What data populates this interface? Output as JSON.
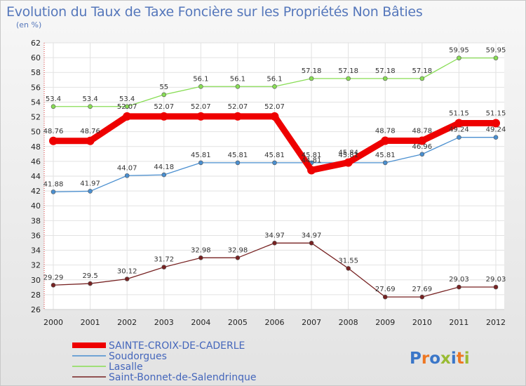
{
  "header": {
    "title": "Evolution du Taux de Taxe Foncière sur les Propriétés Non Bâties",
    "unit": "(en %)"
  },
  "logo": {
    "text": "Proxiti"
  },
  "chart_data": {
    "type": "line",
    "title": "Evolution du Taux de Taxe Foncière sur les Propriétés Non Bâties",
    "ylabel": "(en %)",
    "xlabel": "",
    "x": [
      "2000",
      "2001",
      "2002",
      "2003",
      "2004",
      "2005",
      "2006",
      "2007",
      "2008",
      "2009",
      "2010",
      "2011",
      "2012"
    ],
    "ylim": [
      26,
      62
    ],
    "yticks": [
      26,
      28,
      30,
      32,
      34,
      36,
      38,
      40,
      42,
      44,
      46,
      48,
      50,
      52,
      54,
      56,
      58,
      60,
      62
    ],
    "grid": true,
    "legend_position": "bottom-left",
    "series": [
      {
        "name": "SAINTE-CROIX-DE-CADERLE",
        "color": "#ee0000",
        "values": [
          48.76,
          48.76,
          52.07,
          52.07,
          52.07,
          52.07,
          52.07,
          44.81,
          45.84,
          48.78,
          48.78,
          51.15,
          51.15
        ],
        "labels": [
          "48.76",
          "48.76",
          "52.07",
          "52.07",
          "52.07",
          "52.07",
          "52.07",
          "44.81",
          "45.84",
          "48.78",
          "48.78",
          "51.15",
          "51.15"
        ]
      },
      {
        "name": "Soudorgues",
        "color": "#4a8fd0",
        "values": [
          41.88,
          41.97,
          44.07,
          44.18,
          45.81,
          45.81,
          45.81,
          45.81,
          45.81,
          45.81,
          46.96,
          49.24,
          49.24
        ],
        "labels": [
          "41.88",
          "41.97",
          "44.07",
          "44.18",
          "45.81",
          "45.81",
          "45.81",
          "45.81",
          "45.81",
          "45.81",
          "46.96",
          "49.24",
          "49.24"
        ]
      },
      {
        "name": "Lasalle",
        "color": "#88dd55",
        "values": [
          53.4,
          53.4,
          53.4,
          55,
          56.1,
          56.1,
          56.1,
          57.18,
          57.18,
          57.18,
          57.18,
          59.95,
          59.95
        ],
        "labels": [
          "53.4",
          "53.4",
          "53.4",
          "55",
          "56.1",
          "56.1",
          "56.1",
          "57.18",
          "57.18",
          "57.18",
          "57.18",
          "59.95",
          "59.95"
        ]
      },
      {
        "name": "Saint-Bonnet-de-Salendrinque",
        "color": "#772222",
        "values": [
          29.29,
          29.5,
          30.12,
          31.72,
          32.98,
          32.98,
          34.97,
          34.97,
          31.55,
          27.69,
          27.69,
          29.03,
          29.03
        ],
        "labels": [
          "29.29",
          "29.5",
          "30.12",
          "31.72",
          "32.98",
          "32.98",
          "34.97",
          "34.97",
          "31.55",
          "27.69",
          "27.69",
          "29.03",
          "29.03"
        ]
      }
    ]
  }
}
